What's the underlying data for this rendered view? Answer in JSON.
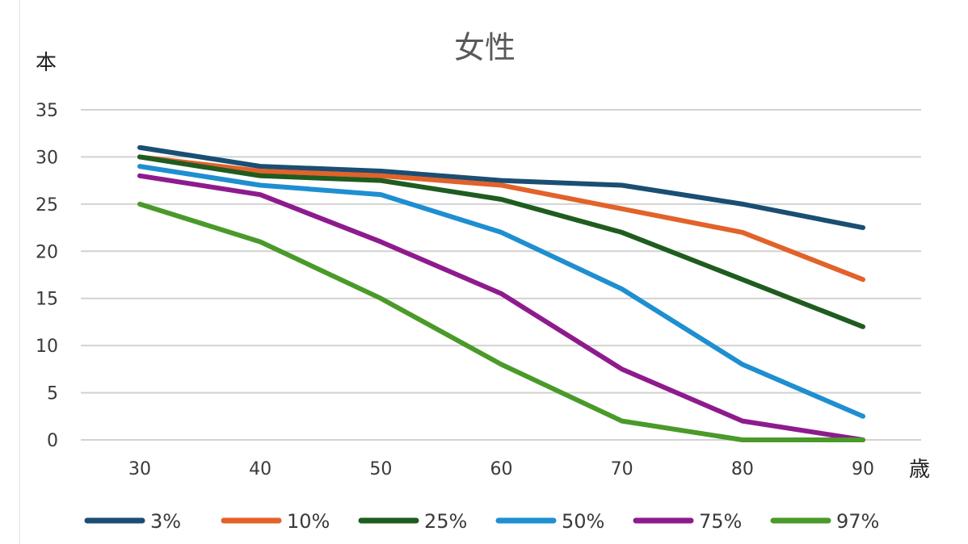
{
  "chart_data": {
    "type": "line",
    "title": "女性",
    "ylabel": "本",
    "xlabel": "歳",
    "x": [
      30,
      40,
      50,
      60,
      70,
      80,
      90
    ],
    "ylim": [
      0,
      35
    ],
    "yticks": [
      0,
      5,
      10,
      15,
      20,
      25,
      30,
      35
    ],
    "grid": true,
    "legend_position": "bottom",
    "series": [
      {
        "name": "3%",
        "color": "#1a4e73",
        "values": [
          31,
          29,
          28.5,
          27.5,
          27,
          25,
          22.5
        ]
      },
      {
        "name": "10%",
        "color": "#e2622a",
        "values": [
          30,
          28.5,
          28,
          27,
          24.5,
          22,
          17
        ]
      },
      {
        "name": "25%",
        "color": "#1f5c1f",
        "values": [
          30,
          28,
          27.5,
          25.5,
          22,
          17,
          12
        ]
      },
      {
        "name": "50%",
        "color": "#1e8fd0",
        "values": [
          29,
          27,
          26,
          22,
          16,
          8,
          2.5
        ]
      },
      {
        "name": "75%",
        "color": "#8e1b8e",
        "values": [
          28,
          26,
          21,
          15.5,
          7.5,
          2,
          0
        ]
      },
      {
        "name": "97%",
        "color": "#4a9a2a",
        "values": [
          25,
          21,
          15,
          8,
          2,
          0,
          0
        ]
      }
    ]
  }
}
